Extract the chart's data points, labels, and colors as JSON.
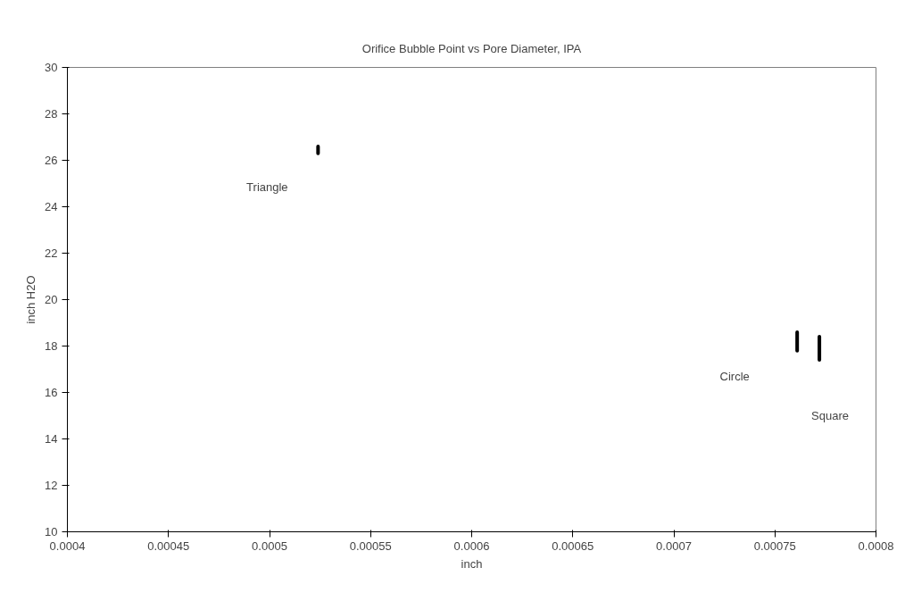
{
  "chart_data": {
    "type": "line",
    "title": "Orifice Bubble Point vs Pore Diameter, IPA",
    "xlabel": "inch",
    "ylabel": "inch H2O",
    "xlim": [
      0.0004,
      0.0008
    ],
    "xticks": [
      0.0004,
      0.00045,
      0.0005,
      0.00055,
      0.0006,
      0.00065,
      0.0007,
      0.00075,
      0.0008
    ],
    "ylim": [
      10,
      30
    ],
    "yticks": [
      10,
      12,
      14,
      16,
      18,
      20,
      22,
      24,
      26,
      28,
      30
    ],
    "series": [
      {
        "color": "#000000",
        "x": [
          0.000524,
          0.000524
        ],
        "values": [
          26.6,
          26.3
        ]
      },
      {
        "color": "#000000",
        "x": [
          0.000761,
          0.000761
        ],
        "values": [
          18.6,
          17.8
        ]
      },
      {
        "color": "#000000",
        "x": [
          0.000772,
          0.000772
        ],
        "values": [
          18.4,
          17.4
        ]
      }
    ],
    "annotations": [
      "Triangle",
      "Circle",
      "Square"
    ],
    "grid": false,
    "marker": "none",
    "line_style": "solid"
  }
}
